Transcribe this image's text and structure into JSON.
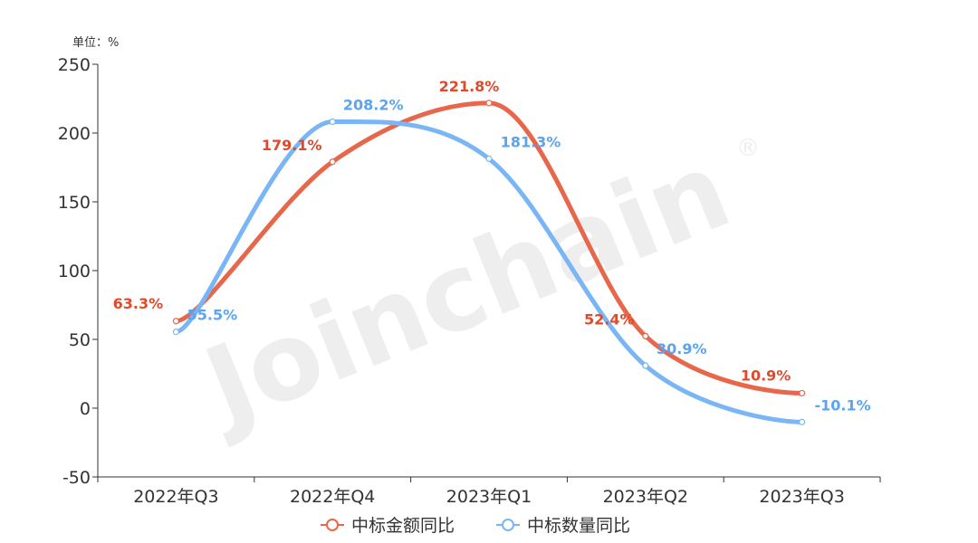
{
  "chart_data": {
    "type": "line",
    "unit_label": "单位：%",
    "watermark": "Joinchain",
    "watermark_mark": "®",
    "categories": [
      "2022年Q3",
      "2022年Q4",
      "2023年Q1",
      "2023年Q2",
      "2023年Q3"
    ],
    "ylim": [
      -50,
      250
    ],
    "yticks": [
      250,
      200,
      150,
      100,
      50,
      0,
      -50
    ],
    "smooth": true,
    "grid": false,
    "legend_position": "bottom",
    "series": [
      {
        "name": "中标金额同比",
        "color": "#e8664a",
        "label_color": "#e04a2a",
        "values": [
          63.3,
          179.1,
          221.8,
          52.4,
          10.9
        ],
        "labels": [
          "63.3%",
          "179.1%",
          "221.8%",
          "52.4%",
          "10.9%"
        ]
      },
      {
        "name": "中标数量同比",
        "color": "#7ab6f5",
        "label_color": "#5aa4f0",
        "values": [
          55.5,
          208.2,
          181.3,
          30.9,
          -10.1
        ],
        "labels": [
          "55.5%",
          "208.2%",
          "181.3%",
          "30.9%",
          "-10.1%"
        ]
      }
    ]
  }
}
